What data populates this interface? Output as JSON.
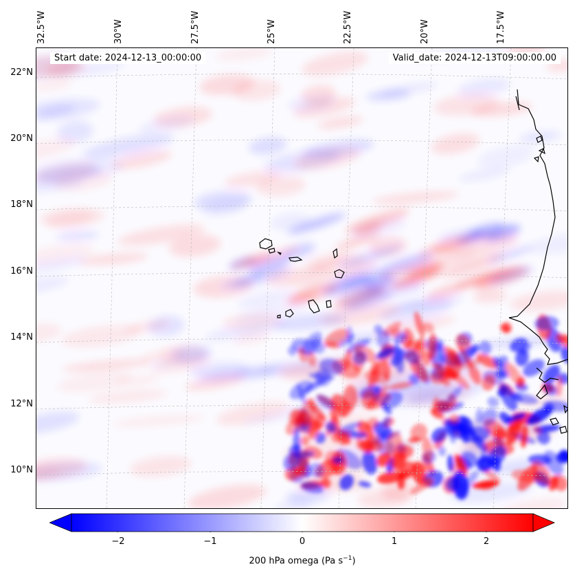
{
  "header": {
    "start_date": "Start date: 2024-12-13_00:00:00",
    "valid_date": "Valid_date: 2024-12-13T09:00:00.00"
  },
  "axes": {
    "longitude_labels": [
      "32.5°W",
      "30°W",
      "27.5°W",
      "25°W",
      "22.5°W",
      "20°W",
      "17.5°W"
    ],
    "latitude_labels": [
      "22°N",
      "20°N",
      "18°N",
      "16°N",
      "14°N",
      "12°N",
      "10°N"
    ],
    "gridlines": true
  },
  "colorbar": {
    "label_main": "200 hPa omega (Pa s",
    "label_exp": "−1",
    "label_close": ")",
    "ticks": [
      "−2",
      "−1",
      "0",
      "1",
      "2"
    ],
    "range": [
      -2.5,
      2.5
    ],
    "extend": "both",
    "colormap": "bwr",
    "low_color": "#0000ff",
    "mid_color": "#ffffff",
    "high_color": "#ff0000"
  },
  "map": {
    "coastline_color": "#000000",
    "field": "200 hPa omega"
  }
}
